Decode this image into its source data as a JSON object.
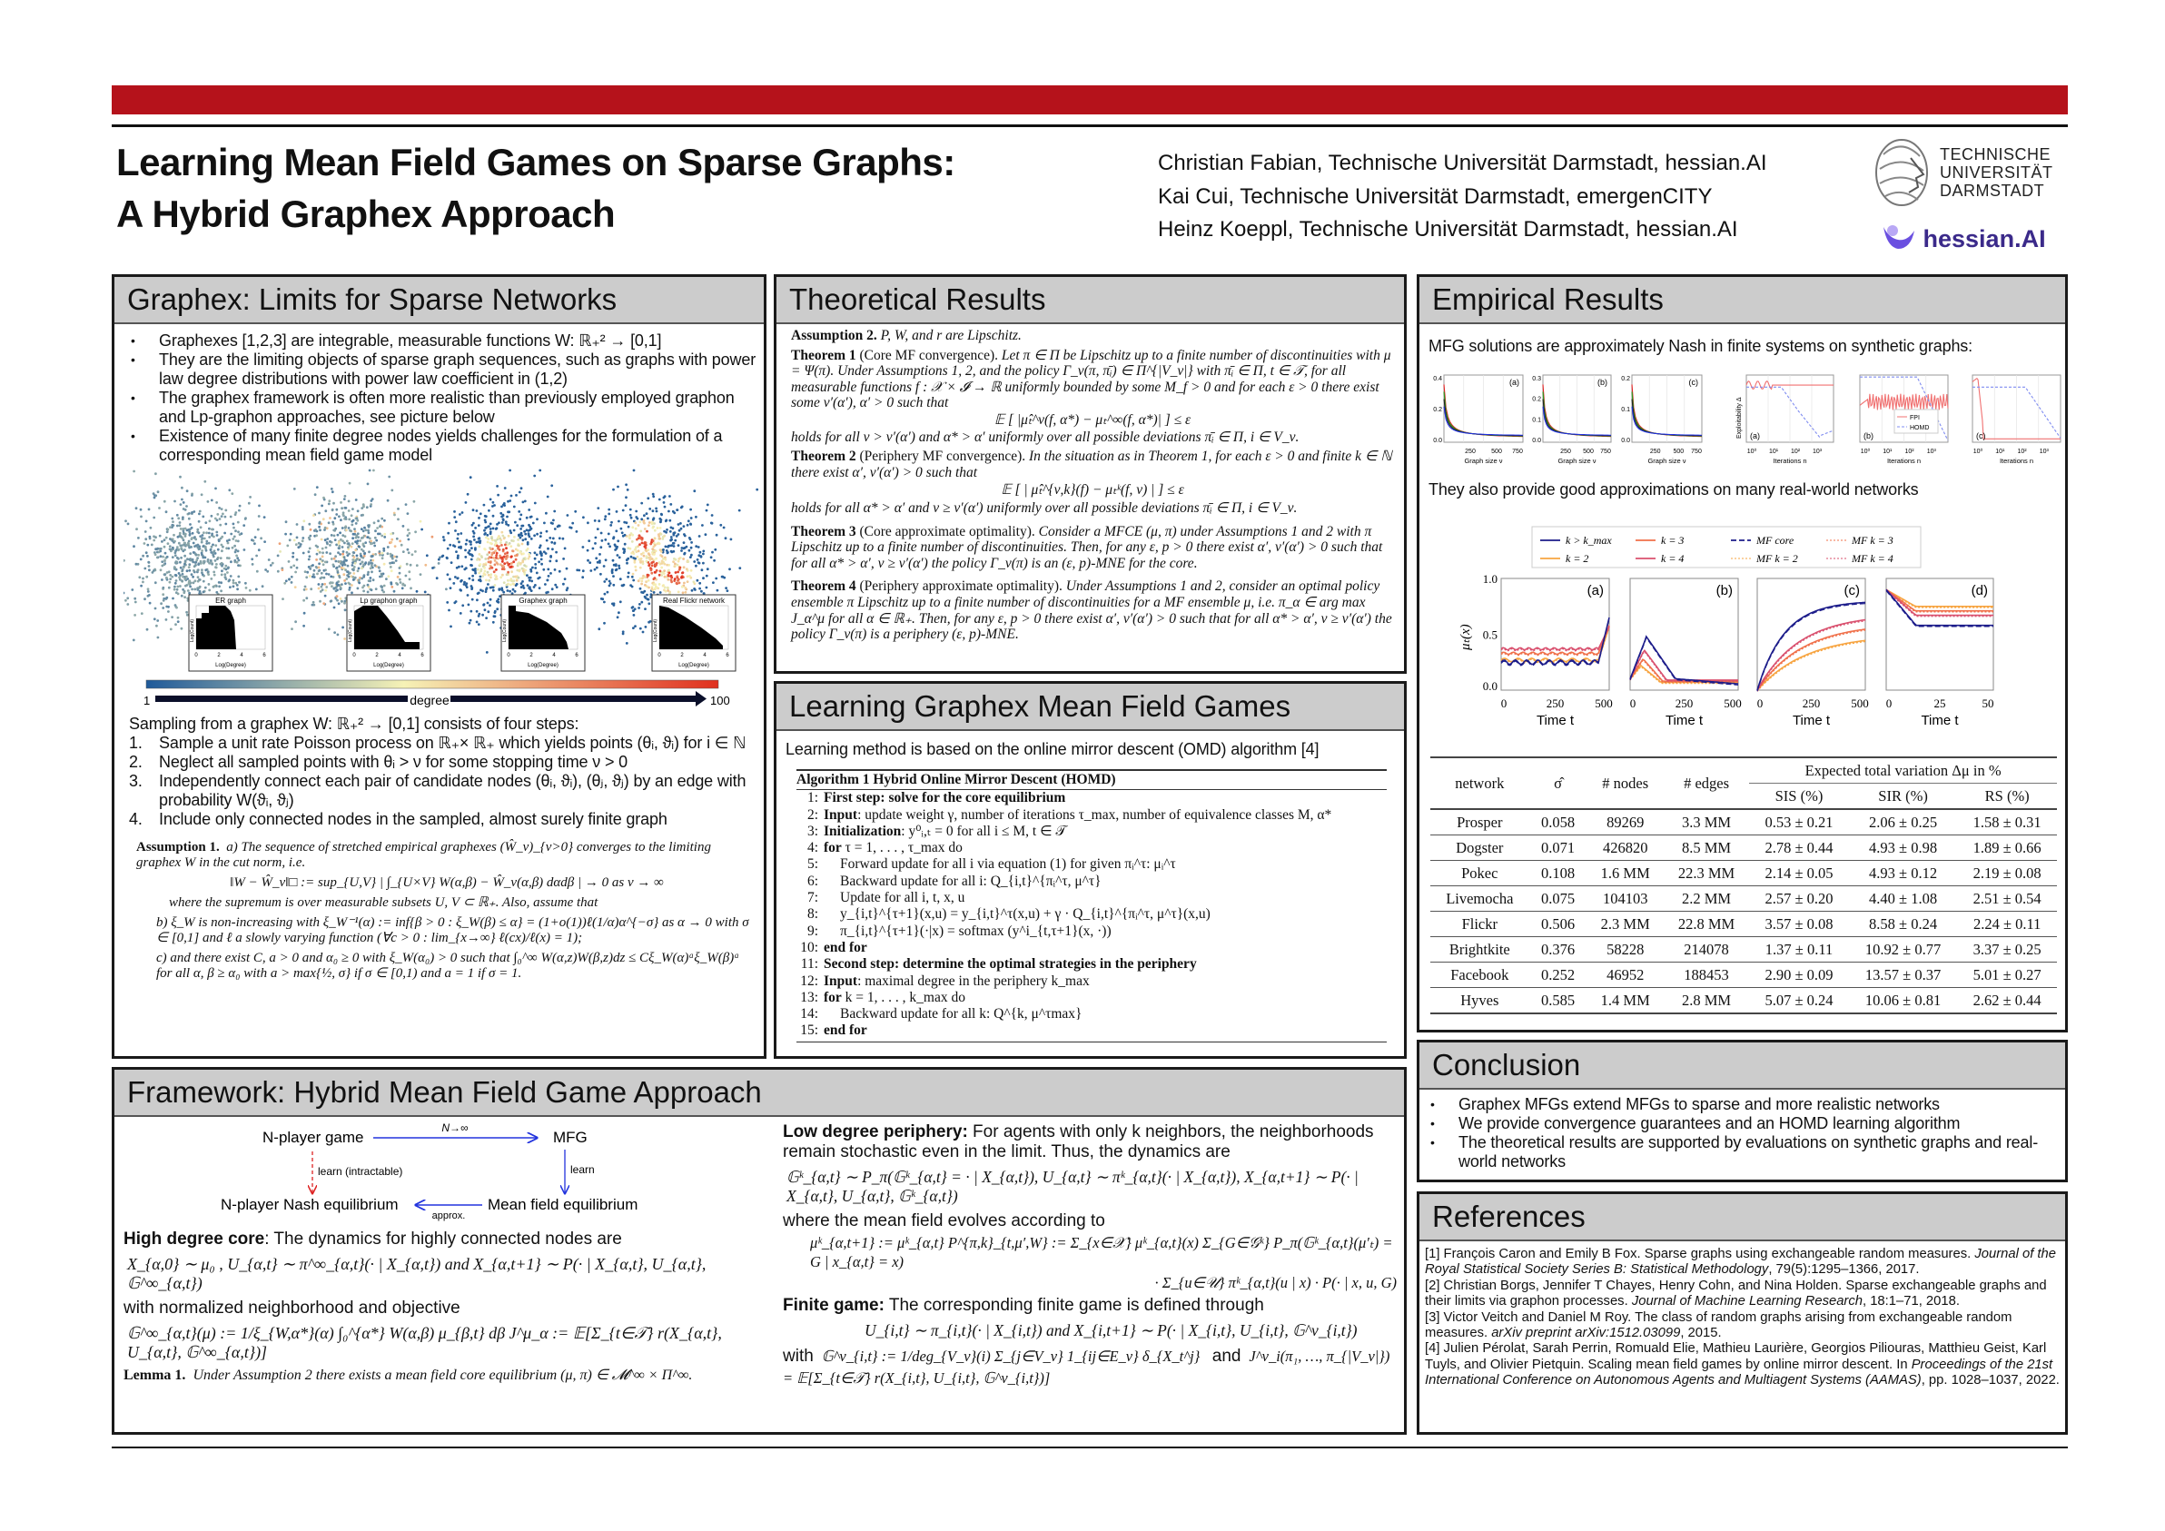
{
  "colors": {
    "accent": "#b5121b",
    "header_bg": "#cccccc",
    "hessian_purple": "#5b3fd0"
  },
  "header": {
    "title_line1": "Learning Mean Field Games on Sparse Graphs:",
    "title_line2": "A Hybrid Graphex Approach",
    "authors": [
      "Christian Fabian, Technische Universität Darmstadt, hessian.AI",
      "Kai Cui, Technische Universität Darmstadt, emergenCITY",
      "Heinz Koeppl, Technische Universität Darmstadt, hessian.AI"
    ],
    "tud_logo": [
      "TECHNISCHE",
      "UNIVERSITÄT",
      "DARMSTADT"
    ],
    "hessian_logo": "hessian.AI"
  },
  "graphex": {
    "heading": "Graphex: Limits for Sparse Networks",
    "bullets": [
      "Graphexes [1,2,3] are integrable, measurable functions W: ℝ₊² → [0,1]",
      "They are the limiting objects of sparse graph sequences, such as graphs with power law degree distributions  with power law coefficient in (1,2)",
      "The graphex framework is often more realistic than previously employed graphon and Lp-graphon approaches, see picture below",
      "Existence of many finite degree nodes yields challenges for the formulation of a corresponding mean field game model"
    ],
    "figure": {
      "insets": [
        "ER graph",
        "Lp graphon graph",
        "Graphex graph",
        "Real Flickr network"
      ],
      "inset_xlabel": "Log(Degree)",
      "inset_ylabel": "Log(Count)",
      "inset_xticks": [
        "0",
        "2",
        "4",
        "6"
      ],
      "inset_yticks": [
        "0",
        "4",
        "8"
      ],
      "colorbar_min": "1",
      "colorbar_label": "degree",
      "colorbar_max": "100"
    },
    "sampling_intro": "Sampling from a graphex W: ℝ₊² → [0,1] consists of four steps:",
    "steps": [
      {
        "n": "1.",
        "text": "Sample a unit rate Poisson process on ℝ₊× ℝ₊ which yields points (θᵢ, ϑᵢ) for i ∈ ℕ"
      },
      {
        "n": "2.",
        "text": "Neglect all sampled points with θᵢ > ν for some stopping time ν > 0"
      },
      {
        "n": "3.",
        "text": "Independently connect each pair of candidate nodes (θᵢ, ϑᵢ), (θⱼ, ϑⱼ) by an edge with probability W(ϑᵢ, ϑⱼ)"
      },
      {
        "n": "4.",
        "text": "Include only connected nodes in the sampled, almost surely finite graph"
      }
    ],
    "assumption1": {
      "label": "Assumption 1.",
      "a": "a) The sequence of stretched empirical graphexes (Ŵ_ν)_{ν>0} converges to the limiting graphex W in the cut norm, i.e.",
      "a_eq": "‖W − Ŵ_ν‖□ := sup_{U,V} | ∫_{U×V} W(α,β) − Ŵ_ν(α,β) dαdβ | → 0   as   ν → ∞",
      "a_after": "where the supremum is over measurable subsets U, V ⊂ ℝ₊. Also, assume that",
      "b": "b) ξ_W is non-increasing with ξ_W⁻¹(α) := inf{β > 0 : ξ_W(β) ≤ α} = (1+o(1))ℓ(1/α)α^{−σ} as α → 0 with σ ∈ [0,1] and ℓ a slowly varying function (∀c > 0 : lim_{x→∞} ℓ(cx)/ℓ(x) = 1);",
      "c": "c) and there exist C, a > 0 and α₀ ≥ 0 with ξ_W(α₀) > 0 such that ∫₀^∞ W(α,z)W(β,z)dz ≤ Cξ_W(α)ᵃξ_W(β)ᵃ for all α, β ≥ α₀ with a > max{½, σ} if σ ∈ [0,1) and a = 1 if σ = 1."
    }
  },
  "theory": {
    "heading": "Theoretical Results",
    "assumption2": {
      "label": "Assumption 2.",
      "text": "P, W, and r are Lipschitz."
    },
    "theorem1": {
      "label": "Theorem 1",
      "name": "(Core MF convergence).",
      "text": "Let π ∈ Π be Lipschitz up to a finite number of discontinuities with μ = Ψ(π). Under Assumptions 1, 2, and the policy Γ_ν(π, π̄ᵢ) ∈ Π^{|V_ν|} with π̄ᵢ ∈ Π, t ∈ 𝒯, for all measurable functions f : 𝒳 × 𝓘 → ℝ uniformly bounded by some M_f > 0 and for each ε > 0 there exist some ν′(α′), α′ > 0 such that",
      "eq": "𝔼 [ |μ̂ₜ^ν(f, α*) − μₜ^∞(f, α*)| ] ≤ ε",
      "after": "holds for all ν > ν′(α′) and α* > α′ uniformly over all possible deviations π̄ᵢ ∈ Π, i ∈ V_ν."
    },
    "theorem2": {
      "label": "Theorem 2",
      "name": "(Periphery MF convergence).",
      "text": "In the situation as in Theorem 1, for each ε > 0 and finite k ∈ ℕ there exist α′, ν′(α′) > 0 such that",
      "eq": "𝔼 [ | μ̂ₜ^{ν,k}(f) − μₜᵏ(f, ν) | ] ≤ ε",
      "after": "holds for all α* > α′ and ν ≥ ν′(α′) uniformly over all possible deviations π̄ᵢ ∈ Π, i ∈ V_ν."
    },
    "theorem3": {
      "label": "Theorem 3",
      "name": "(Core approximate optimality).",
      "text": "Consider a MFCE (μ, π) under Assumptions 1 and 2 with π Lipschitz up to a finite number of discontinuities. Then, for any ε, p > 0 there exist α′, ν′(α′) > 0 such that for all α* > α′, ν ≥ ν′(α′) the policy Γ_ν(π) is an (ε, p)-MNE for the core."
    },
    "theorem4": {
      "label": "Theorem 4",
      "name": "(Periphery approximate optimality).",
      "text": "Under Assumptions 1 and 2, consider an optimal policy ensemble π Lipschitz up to a finite number of discontinuities for a MF ensemble μ, i.e. π_α ∈ arg max J_α^μ for all α ∈ ℝ₊. Then, for any ε, p > 0 there exist α′, ν′(α′) > 0 such that for all α* > α′, ν ≥ ν′(α′) the policy Γ_ν(π) is a periphery (ε, p)-MNE."
    }
  },
  "learning": {
    "heading": "Learning Graphex Mean Field Games",
    "intro": "Learning method is based on the online mirror descent (OMD) algorithm [4]",
    "algorithm_title": "Algorithm 1 Hybrid Online Mirror Descent (HOMD)",
    "lines": [
      {
        "n": "1:",
        "bold": "First step: solve for the core equilibrium",
        "text": "",
        "indent": 0
      },
      {
        "n": "2:",
        "bold": "Input",
        "text": ": update weight γ, number of iterations τ_max, number of equivalence classes M, α*",
        "indent": 0
      },
      {
        "n": "3:",
        "bold": "Initialization",
        "text": ": y⁰ᵢ,ₜ = 0 for all i ≤ M, t ∈ 𝒯",
        "indent": 0
      },
      {
        "n": "4:",
        "bold": "for",
        "text": " τ = 1, . . . , τ_max do",
        "indent": 0
      },
      {
        "n": "5:",
        "bold": "",
        "text": "Forward update for all i via equation (1) for given πᵢ^τ: μᵢ^τ",
        "indent": 1
      },
      {
        "n": "6:",
        "bold": "",
        "text": "Backward update for all i: Q_{i,t}^{πᵢ^τ, μ^τ}",
        "indent": 1
      },
      {
        "n": "7:",
        "bold": "",
        "text": "Update for all i, t, x, u",
        "indent": 1
      },
      {
        "n": "8:",
        "bold": "",
        "text": "y_{i,t}^{τ+1}(x,u) = y_{i,t}^τ(x,u) + γ · Q_{i,t}^{πᵢ^τ, μ^τ}(x,u)",
        "indent": 1
      },
      {
        "n": "9:",
        "bold": "",
        "text": "π_{i,t}^{τ+1}(·|x) = softmax (y^i_{t,τ+1}(x, ·))",
        "indent": 1
      },
      {
        "n": "10:",
        "bold": "end for",
        "text": "",
        "indent": 0
      },
      {
        "n": "11:",
        "bold": "Second step: determine the optimal strategies in the periphery",
        "text": "",
        "indent": 0
      },
      {
        "n": "12:",
        "bold": "Input",
        "text": ": maximal degree in the periphery k_max",
        "indent": 0
      },
      {
        "n": "13:",
        "bold": "for",
        "text": " k = 1, . . . , k_max do",
        "indent": 0
      },
      {
        "n": "14:",
        "bold": "",
        "text": "Backward update for all k: Q^{k, μ^τmax}",
        "indent": 1
      },
      {
        "n": "15:",
        "bold": "end for",
        "text": "",
        "indent": 0
      }
    ]
  },
  "empirical": {
    "heading": "Empirical Results",
    "synthetic_text": "MFG solutions are approximately Nash in finite systems on synthetic graphs:",
    "realworld_text": "They also provide good approximations on many real-world networks",
    "synthetic_fig": {
      "size_panels": [
        {
          "label": "(a)",
          "yticks": [
            "0.0",
            "0.2",
            "0.4"
          ]
        },
        {
          "label": "(b)",
          "yticks": [
            "0.0",
            "0.1",
            "0.2",
            "0.3"
          ]
        },
        {
          "label": "(c)",
          "yticks": [
            "0.0",
            "0.1",
            "0.2"
          ]
        }
      ],
      "size_xticks": [
        "250",
        "500",
        "750"
      ],
      "size_xlabel": "Graph size ν",
      "expl_panels": [
        "(a)",
        "(b)",
        "(c)"
      ],
      "expl_xticks": [
        "10⁰",
        "10¹",
        "10²",
        "10³"
      ],
      "expl_xlabel": "Iterations n",
      "expl_ylabel": "Exploitability Δ",
      "legend": [
        "FPI",
        "HOMD"
      ]
    },
    "realworld_fig": {
      "legend": [
        {
          "label": "k > k_max",
          "color": "#1c1c8a",
          "dash": "solid"
        },
        {
          "label": "k = 3",
          "color": "#f0704a",
          "dash": "solid"
        },
        {
          "label": "MF core",
          "color": "#1c1c8a",
          "dash": "dashed"
        },
        {
          "label": "MF k = 3",
          "color": "#f0704a",
          "dash": "dotted"
        },
        {
          "label": "k = 2",
          "color": "#f7a440",
          "dash": "solid"
        },
        {
          "label": "k = 4",
          "color": "#d9506e",
          "dash": "solid"
        },
        {
          "label": "MF k = 2",
          "color": "#f7a440",
          "dash": "dotted"
        },
        {
          "label": "MF k = 4",
          "color": "#d9506e",
          "dash": "dotted"
        }
      ],
      "ylabel": "μₜ(x)",
      "yticks": [
        "0.0",
        "0.5",
        "1.0"
      ],
      "xlabel": "Time t",
      "panels": [
        {
          "label": "(a)",
          "xticks": [
            "0",
            "250",
            "500"
          ]
        },
        {
          "label": "(b)",
          "xticks": [
            "0",
            "250",
            "500"
          ]
        },
        {
          "label": "(c)",
          "xticks": [
            "0",
            "250",
            "500"
          ]
        },
        {
          "label": "(d)",
          "xticks": [
            "0",
            "25",
            "50"
          ]
        }
      ]
    },
    "table": {
      "group_header": "Expected total variation Δμ in %",
      "columns": [
        "network",
        "σ̂",
        "# nodes",
        "# edges",
        "SIS (%)",
        "SIR (%)",
        "RS (%)"
      ],
      "rows": [
        [
          "Prosper",
          "0.058",
          "89269",
          "3.3 MM",
          "0.53 ± 0.21",
          "2.06 ± 0.25",
          "1.58 ± 0.31"
        ],
        [
          "Dogster",
          "0.071",
          "426820",
          "8.5 MM",
          "2.78 ± 0.44",
          "4.93 ± 0.98",
          "1.89 ± 0.66"
        ],
        [
          "Pokec",
          "0.108",
          "1.6 MM",
          "22.3 MM",
          "2.14 ± 0.05",
          "4.93 ± 0.12",
          "2.19 ± 0.08"
        ],
        [
          "Livemocha",
          "0.075",
          "104103",
          "2.2 MM",
          "2.57 ± 0.20",
          "4.40 ± 1.08",
          "2.51 ± 0.54"
        ],
        [
          "Flickr",
          "0.506",
          "2.3 MM",
          "22.8 MM",
          "3.57 ± 0.08",
          "8.58 ± 0.24",
          "2.24 ± 0.11"
        ],
        [
          "Brightkite",
          "0.376",
          "58228",
          "214078",
          "1.37 ± 0.11",
          "10.92 ± 0.77",
          "3.37 ± 0.25"
        ],
        [
          "Facebook",
          "0.252",
          "46952",
          "188453",
          "2.90 ± 0.09",
          "13.57 ± 0.37",
          "5.01 ± 0.27"
        ],
        [
          "Hyves",
          "0.585",
          "1.4 MM",
          "2.8 MM",
          "5.07 ± 0.24",
          "10.06 ± 0.81",
          "2.62 ± 0.44"
        ]
      ]
    }
  },
  "conclusion": {
    "heading": "Conclusion",
    "bullets": [
      "Graphex MFGs extend MFGs to sparse and more realistic networks",
      "We provide convergence guarantees and an HOMD learning algorithm",
      "The theoretical results are supported by evaluations on synthetic graphs and real-world networks"
    ]
  },
  "references": {
    "heading": "References",
    "items": [
      {
        "pre": "[1] François Caron and Emily B Fox. Sparse graphs using exchangeable random measures. ",
        "venue": "Journal of the Royal Statistical Society Series B: Statistical Methodology",
        "post": ", 79(5):1295–1366, 2017."
      },
      {
        "pre": "[2] Christian Borgs, Jennifer T Chayes, Henry Cohn, and Nina Holden. Sparse exchangeable graphs and their limits via graphon processes. ",
        "venue": "Journal of Machine Learning Research",
        "post": ", 18:1–71, 2018."
      },
      {
        "pre": "[3] Victor Veitch and Daniel M Roy. The class of random graphs arising from exchangeable random measures. ",
        "venue": "arXiv preprint arXiv:1512.03099",
        "post": ", 2015."
      },
      {
        "pre": "[4] Julien Pérolat, Sarah Perrin, Romuald Elie, Mathieu Laurière, Georgios Piliouras, Matthieu Geist, Karl Tuyls, and Olivier Pietquin. Scaling mean field games by online mirror descent. In ",
        "venue": "Proceedings of the 21st International Conference on Autonomous Agents and Multiagent Systems (AAMAS)",
        "post": ", pp. 1028–1037, 2022."
      }
    ]
  },
  "framework": {
    "heading": "Framework: Hybrid Mean Field Game Approach",
    "diagram": {
      "nplayer": "N-player game",
      "mfg": "MFG",
      "limit": "N→∞",
      "learn_intractable": "learn (intractable)",
      "learn": "learn",
      "nash": "N-player Nash equilibrium",
      "mfe": "Mean field equilibrium",
      "approx": "approx."
    },
    "core_label": "High degree core",
    "core_text": ": The dynamics for highly connected nodes are",
    "core_eq": "X_{α,0} ∼ μ₀ ,   U_{α,t} ∼ π^∞_{α,t}(· | X_{α,t})    and    X_{α,t+1} ∼ P(· | X_{α,t}, U_{α,t}, 𝔾^∞_{α,t})",
    "core_text2": "with normalized neighborhood and objective",
    "core_eq2": "𝔾^∞_{α,t}(μ) := 1/ξ_{W,α*}(α) ∫₀^{α*} W(α,β) μ_{β,t} dβ     J^μ_α := 𝔼[Σ_{t∈𝒯} r(X_{α,t}, U_{α,t}, 𝔾^∞_{α,t})]",
    "lemma": {
      "label": "Lemma 1.",
      "text": "Under Assumption 2 there exists a mean field core equilibrium (μ, π) ∈ 𝓜^∞ × Π^∞."
    },
    "periphery_label": "Low degree periphery:",
    "periphery_text": " For agents with only k neighbors, the neighborhoods remain stochastic even in the limit. Thus, the dynamics are",
    "periphery_eq": "𝔾ᵏ_{α,t} ∼ P_π(𝔾ᵏ_{α,t} = · | X_{α,t}),   U_{α,t} ∼ πᵏ_{α,t}(· | X_{α,t}),   X_{α,t+1} ∼ P(· | X_{α,t}, U_{α,t}, 𝔾ᵏ_{α,t})",
    "periphery_text2": "where the mean field evolves according to",
    "periphery_eq2": "μᵏ_{α,t+1} := μᵏ_{α,t} P^{π,k}_{t,μ′,W} := Σ_{x∈𝒳} μᵏ_{α,t}(x) Σ_{G∈𝒢ᵏ} P_π(𝔾ᵏ_{α,t}(μ′ₜ) = G | x_{α,t} = x)",
    "periphery_eq3": "· Σ_{u∈𝒰} πᵏ_{α,t}(u | x) · P(· | x, u, G)",
    "finite_label": "Finite game:",
    "finite_text": " The corresponding finite game is defined through",
    "finite_eq": "U_{i,t} ∼ π_{i,t}(· | X_{i,t})    and    X_{i,t+1} ∼ P(· | X_{i,t}, U_{i,t}, 𝔾^ν_{i,t})",
    "finite_with": "with",
    "finite_eq2": "𝔾^ν_{i,t} := 1/deg_{V_ν}(i) Σ_{j∈V_ν} 1_{ij∈E_ν} δ_{X_t^j}",
    "finite_and": "and",
    "finite_eq3": "J^ν_i(π₁, …, π_{|V_ν|}) = 𝔼[Σ_{t∈𝒯} r(X_{i,t}, U_{i,t}, 𝔾^ν_{i,t})]"
  }
}
